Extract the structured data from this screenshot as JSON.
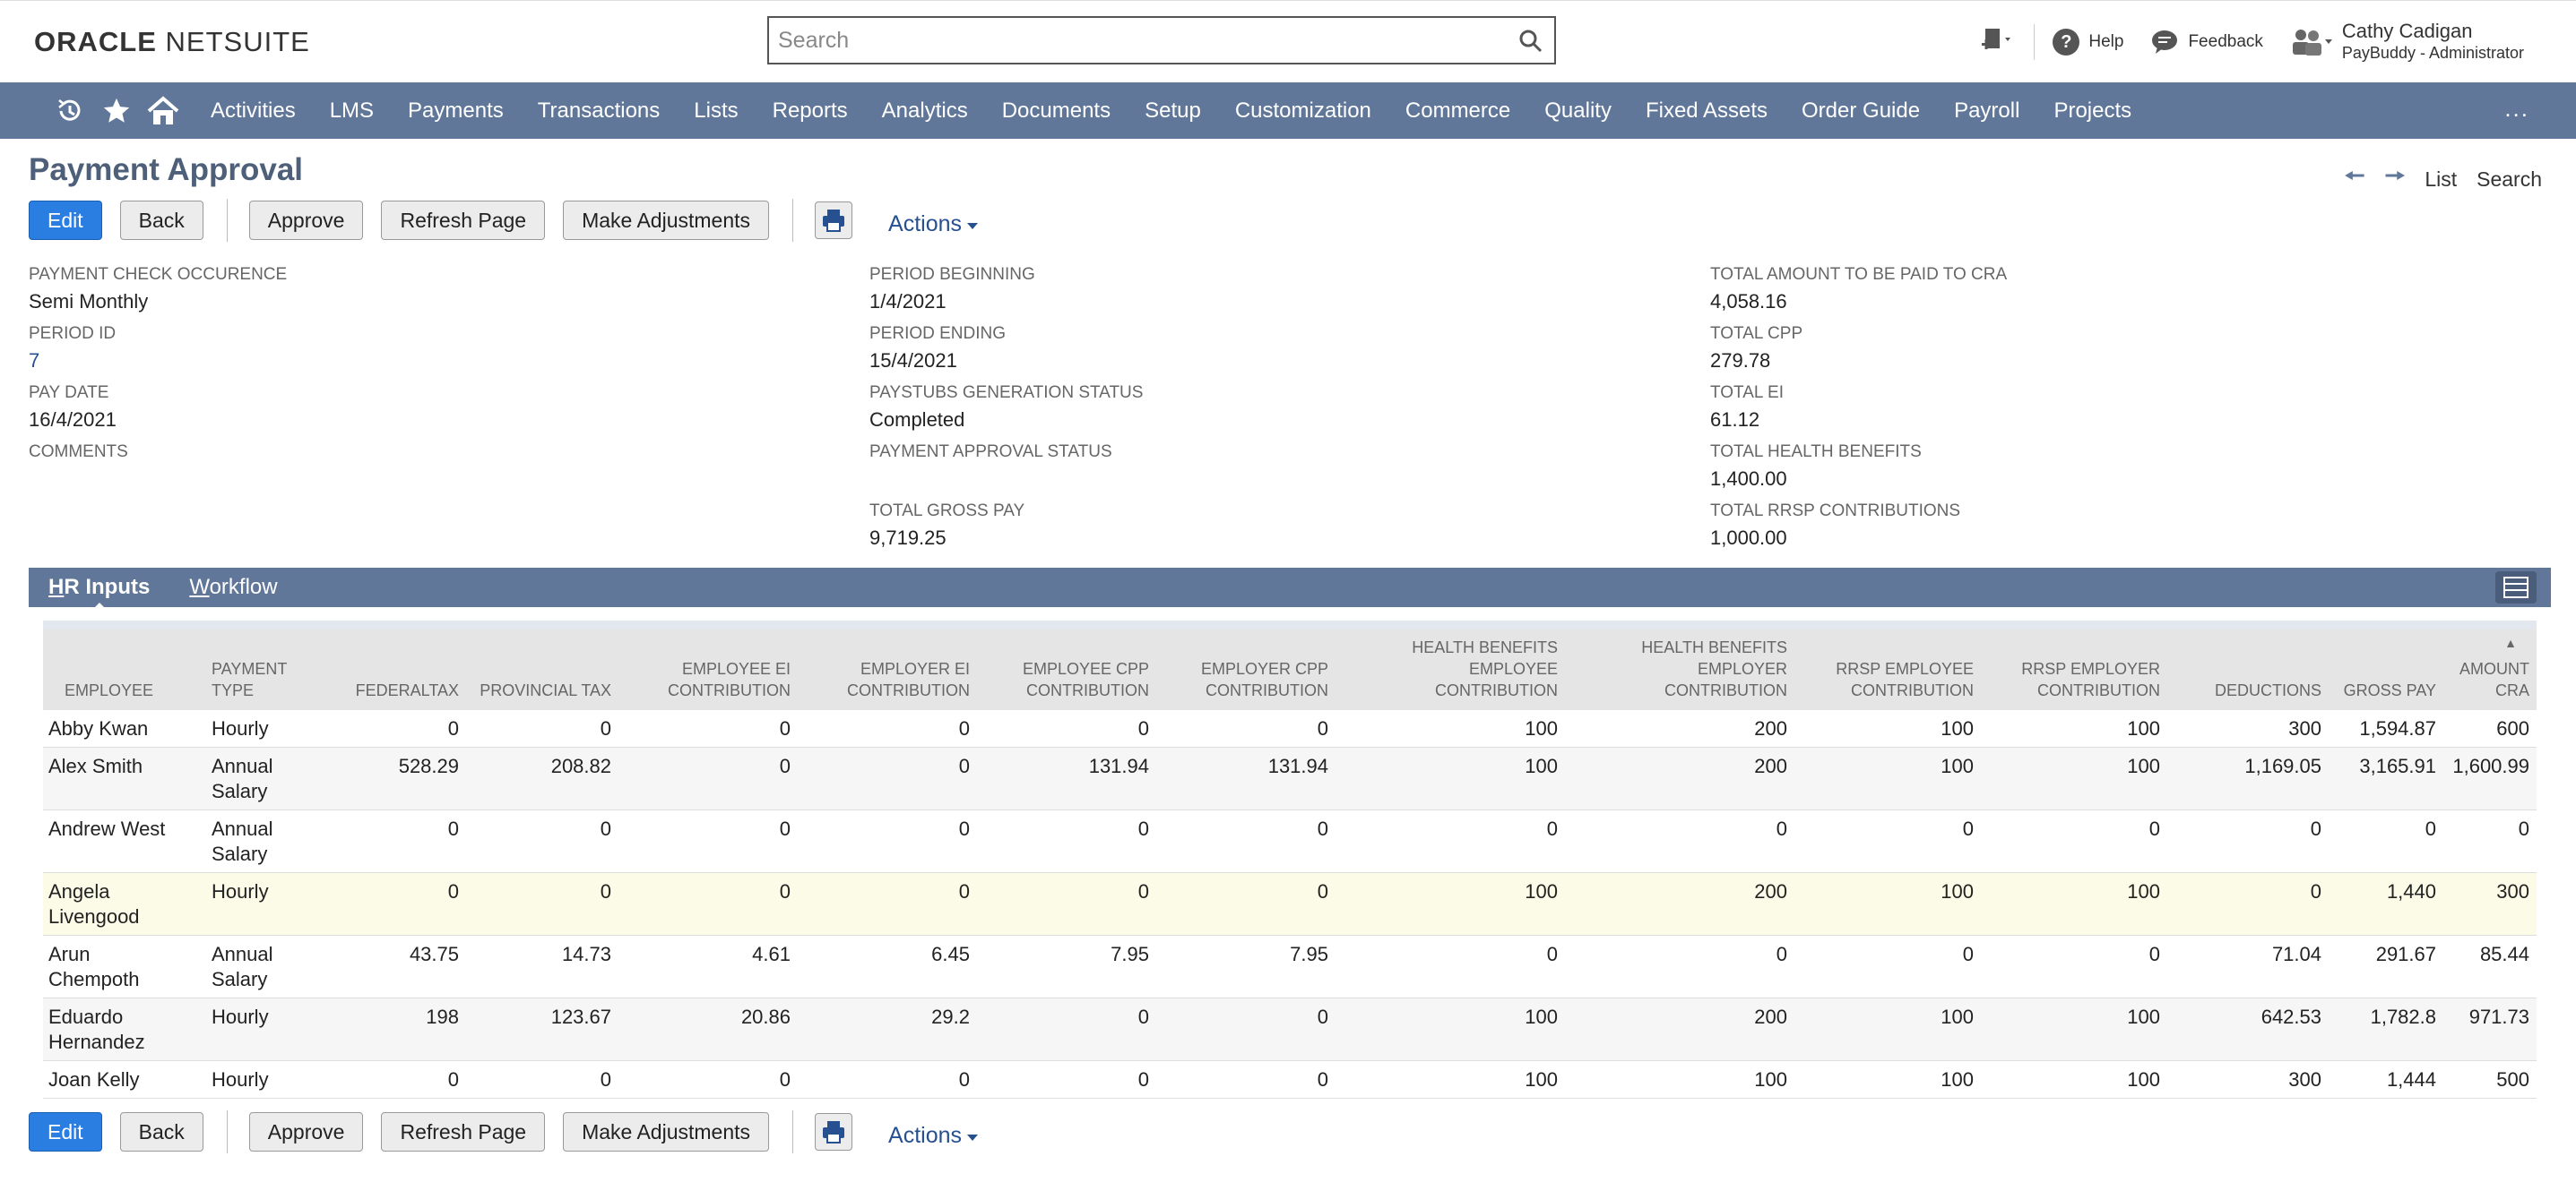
{
  "brand": {
    "oracle": "ORACLE",
    "netsuite": "NETSUITE"
  },
  "search": {
    "placeholder": "Search"
  },
  "header": {
    "help": "Help",
    "feedback": "Feedback",
    "user_name": "Cathy Cadigan",
    "user_role": "PayBuddy - Administrator"
  },
  "nav": {
    "items": [
      "Activities",
      "LMS",
      "Payments",
      "Transactions",
      "Lists",
      "Reports",
      "Analytics",
      "Documents",
      "Setup",
      "Customization",
      "Commerce",
      "Quality",
      "Fixed Assets",
      "Order Guide",
      "Payroll",
      "Projects"
    ],
    "more": "..."
  },
  "page": {
    "title": "Payment Approval",
    "list_link": "List",
    "search_link": "Search"
  },
  "buttons": {
    "edit": "Edit",
    "back": "Back",
    "approve": "Approve",
    "refresh": "Refresh Page",
    "adjust": "Make Adjustments",
    "actions": "Actions"
  },
  "fields": {
    "col1": [
      {
        "label": "PAYMENT CHECK OCCURENCE",
        "value": "Semi Monthly"
      },
      {
        "label": "PERIOD ID",
        "value": "7"
      },
      {
        "label": "PAY DATE",
        "value": "16/4/2021"
      },
      {
        "label": "COMMENTS",
        "value": ""
      }
    ],
    "col2": [
      {
        "label": "PERIOD BEGINNING",
        "value": "1/4/2021"
      },
      {
        "label": "PERIOD ENDING",
        "value": "15/4/2021"
      },
      {
        "label": "PAYSTUBS GENERATION STATUS",
        "value": "Completed"
      },
      {
        "label": "PAYMENT APPROVAL STATUS",
        "value": ""
      },
      {
        "label": "TOTAL GROSS PAY",
        "value": "9,719.25"
      }
    ],
    "col3": [
      {
        "label": "TOTAL AMOUNT TO BE PAID TO CRA",
        "value": "4,058.16"
      },
      {
        "label": "TOTAL CPP",
        "value": "279.78"
      },
      {
        "label": "TOTAL EI",
        "value": "61.12"
      },
      {
        "label": "TOTAL HEALTH BENEFITS",
        "value": "1,400.00"
      },
      {
        "label": "TOTAL RRSP CONTRIBUTIONS",
        "value": "1,000.00"
      }
    ]
  },
  "tabs": {
    "hr_inputs_first": "H",
    "hr_inputs_rest": "R Inputs",
    "workflow_first": "W",
    "workflow_rest": "orkflow"
  },
  "table": {
    "headers": [
      "EMPLOYEE",
      "PAYMENT TYPE",
      "FEDERALTAX",
      "PROVINCIAL TAX",
      "EMPLOYEE EI CONTRIBUTION",
      "EMPLOYER EI CONTRIBUTION",
      "EMPLOYEE CPP CONTRIBUTION",
      "EMPLOYER CPP CONTRIBUTION",
      "HEALTH BENEFITS EMPLOYEE CONTRIBUTION",
      "HEALTH BENEFITS EMPLOYER CONTRIBUTION",
      "RRSP EMPLOYEE CONTRIBUTION",
      "RRSP EMPLOYER CONTRIBUTION",
      "DEDUCTIONS",
      "GROSS PAY",
      "AMOUNT CRA"
    ],
    "rows": [
      [
        "Abby Kwan",
        "Hourly",
        "0",
        "0",
        "0",
        "0",
        "0",
        "0",
        "100",
        "200",
        "100",
        "100",
        "300",
        "1,594.87",
        "600"
      ],
      [
        "Alex Smith",
        "Annual Salary",
        "528.29",
        "208.82",
        "0",
        "0",
        "131.94",
        "131.94",
        "100",
        "200",
        "100",
        "100",
        "1,169.05",
        "3,165.91",
        "1,600.99"
      ],
      [
        "Andrew West",
        "Annual Salary",
        "0",
        "0",
        "0",
        "0",
        "0",
        "0",
        "0",
        "0",
        "0",
        "0",
        "0",
        "0",
        "0"
      ],
      [
        "Angela Livengood",
        "Hourly",
        "0",
        "0",
        "0",
        "0",
        "0",
        "0",
        "100",
        "200",
        "100",
        "100",
        "0",
        "1,440",
        "300"
      ],
      [
        "Arun Chempoth",
        "Annual Salary",
        "43.75",
        "14.73",
        "4.61",
        "6.45",
        "7.95",
        "7.95",
        "0",
        "0",
        "0",
        "0",
        "71.04",
        "291.67",
        "85.44"
      ],
      [
        "Eduardo Hernandez",
        "Hourly",
        "198",
        "123.67",
        "20.86",
        "29.2",
        "0",
        "0",
        "100",
        "200",
        "100",
        "100",
        "642.53",
        "1,782.8",
        "971.73"
      ],
      [
        "Joan Kelly",
        "Hourly",
        "0",
        "0",
        "0",
        "0",
        "0",
        "0",
        "100",
        "100",
        "100",
        "100",
        "300",
        "1,444",
        "500"
      ]
    ]
  }
}
